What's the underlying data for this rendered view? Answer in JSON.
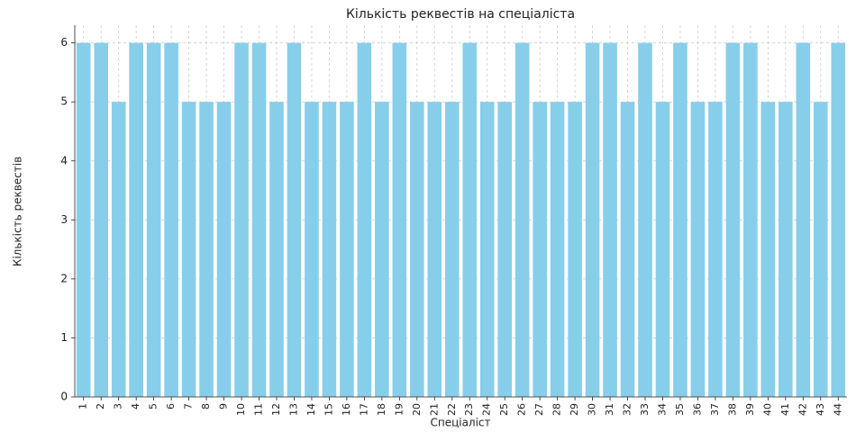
{
  "chart_data": {
    "type": "bar",
    "title": "Кількість реквестів на спеціаліста",
    "xlabel": "Спеціаліст",
    "ylabel": "Кількість реквестів",
    "categories": [
      "1",
      "2",
      "3",
      "4",
      "5",
      "6",
      "7",
      "8",
      "9",
      "10",
      "11",
      "12",
      "13",
      "14",
      "15",
      "16",
      "17",
      "18",
      "19",
      "20",
      "21",
      "22",
      "23",
      "24",
      "25",
      "26",
      "27",
      "28",
      "29",
      "30",
      "31",
      "32",
      "33",
      "34",
      "35",
      "36",
      "37",
      "38",
      "39",
      "40",
      "41",
      "42",
      "43",
      "44"
    ],
    "values": [
      6,
      6,
      5,
      6,
      6,
      6,
      5,
      5,
      5,
      6,
      6,
      5,
      6,
      5,
      5,
      5,
      6,
      5,
      6,
      5,
      5,
      5,
      6,
      5,
      5,
      6,
      5,
      5,
      5,
      6,
      6,
      5,
      6,
      5,
      6,
      5,
      5,
      6,
      6,
      5,
      5,
      6,
      5,
      6
    ],
    "color": "#87ceeb",
    "ylim": [
      0,
      6.3
    ],
    "yticks": [
      0,
      1,
      2,
      3,
      4,
      5,
      6
    ],
    "grid": true
  }
}
